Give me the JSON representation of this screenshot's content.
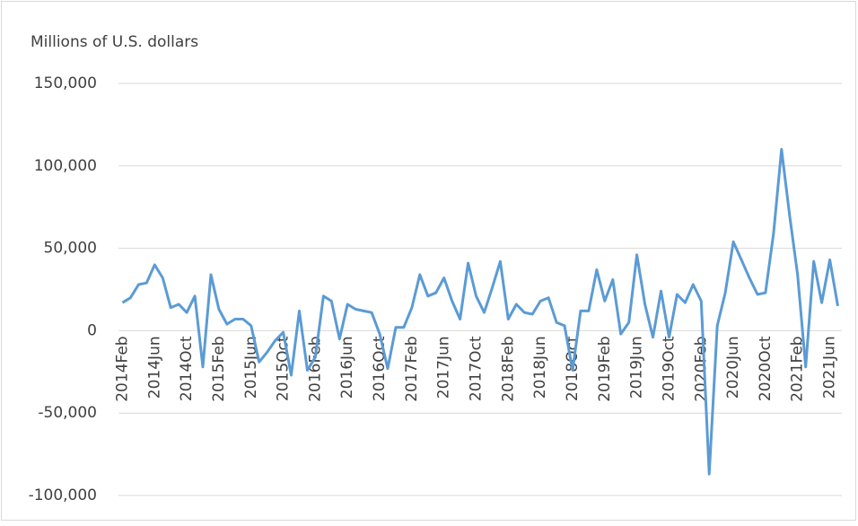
{
  "chart_data": {
    "type": "line",
    "y_label": "Millions of U.S. dollars",
    "categories": [
      "2014Feb",
      null,
      null,
      null,
      "2014Jun",
      null,
      null,
      null,
      "2014Oct",
      null,
      null,
      null,
      "2015Feb",
      null,
      null,
      null,
      "2015Jun",
      null,
      null,
      null,
      "2015Oct",
      null,
      null,
      null,
      "2016Feb",
      null,
      null,
      null,
      "2016Jun",
      null,
      null,
      null,
      "2016Oct",
      null,
      null,
      null,
      "2017Feb",
      null,
      null,
      null,
      "2017Jun",
      null,
      null,
      null,
      "2017Oct",
      null,
      null,
      null,
      "2018Feb",
      null,
      null,
      null,
      "2018Jun",
      null,
      null,
      null,
      "2018Oct",
      null,
      null,
      null,
      "2019Feb",
      null,
      null,
      null,
      "2019Jun",
      null,
      null,
      null,
      "2019Oct",
      null,
      null,
      null,
      "2020Feb",
      null,
      null,
      null,
      "2020Jun",
      null,
      null,
      null,
      "2020Oct",
      null,
      null,
      null,
      "2021Feb",
      null,
      null,
      null,
      "2021Jun",
      null
    ],
    "values": [
      17000,
      20000,
      28000,
      29000,
      40000,
      32000,
      14000,
      16000,
      11000,
      21000,
      -22000,
      34000,
      13000,
      4000,
      7000,
      7000,
      3000,
      -19000,
      -13000,
      -6000,
      -1000,
      -27000,
      12000,
      -24000,
      -16000,
      21000,
      18000,
      -5000,
      16000,
      13000,
      12000,
      11000,
      -2000,
      -23000,
      2000,
      2000,
      14000,
      34000,
      21000,
      23000,
      32000,
      18000,
      7000,
      41000,
      21000,
      11000,
      26000,
      42000,
      7000,
      16000,
      11000,
      10000,
      18000,
      20000,
      5000,
      3000,
      -24000,
      12000,
      12000,
      37000,
      18000,
      31000,
      -2000,
      5000,
      46000,
      16000,
      -4000,
      24000,
      -4000,
      22000,
      17000,
      28000,
      18000,
      -87000,
      3000,
      23000,
      54000,
      43000,
      32000,
      22000,
      23000,
      59000,
      110000,
      70000,
      34000,
      -22000,
      42000,
      17000,
      43000,
      15000
    ],
    "color": "#5b9bd5",
    "ylim": [
      -100000,
      150000
    ],
    "yticks": [
      {
        "value": -100000,
        "label": "-100,000"
      },
      {
        "value": -50000,
        "label": "-50,000"
      },
      0,
      {
        "value": 50000,
        "label": "50,000"
      },
      {
        "value": 100000,
        "label": "100,000"
      },
      {
        "value": 150000,
        "label": "150,000"
      }
    ],
    "grid": true
  }
}
